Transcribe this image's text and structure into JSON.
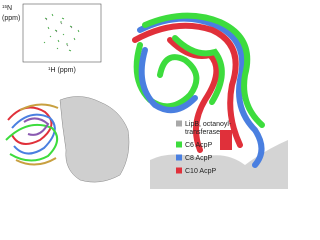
{
  "nmr_panel": {
    "y_label": {
      "sup": "15",
      "text": "N",
      "unit": "(ppm)"
    },
    "x_label": {
      "sup": "1",
      "text": "H (ppm)"
    }
  },
  "legend": [
    {
      "label_lines": [
        "LipB, octanoyl-",
        "transferase"
      ],
      "color": "#a8a8a8"
    },
    {
      "label_lines": [
        "C6 AcpP"
      ],
      "color": "#3ddc3d"
    },
    {
      "label_lines": [
        "C8 AcpP"
      ],
      "color": "#4a7fe0"
    },
    {
      "label_lines": [
        "C10 AcpP"
      ],
      "color": "#e0303a"
    }
  ]
}
